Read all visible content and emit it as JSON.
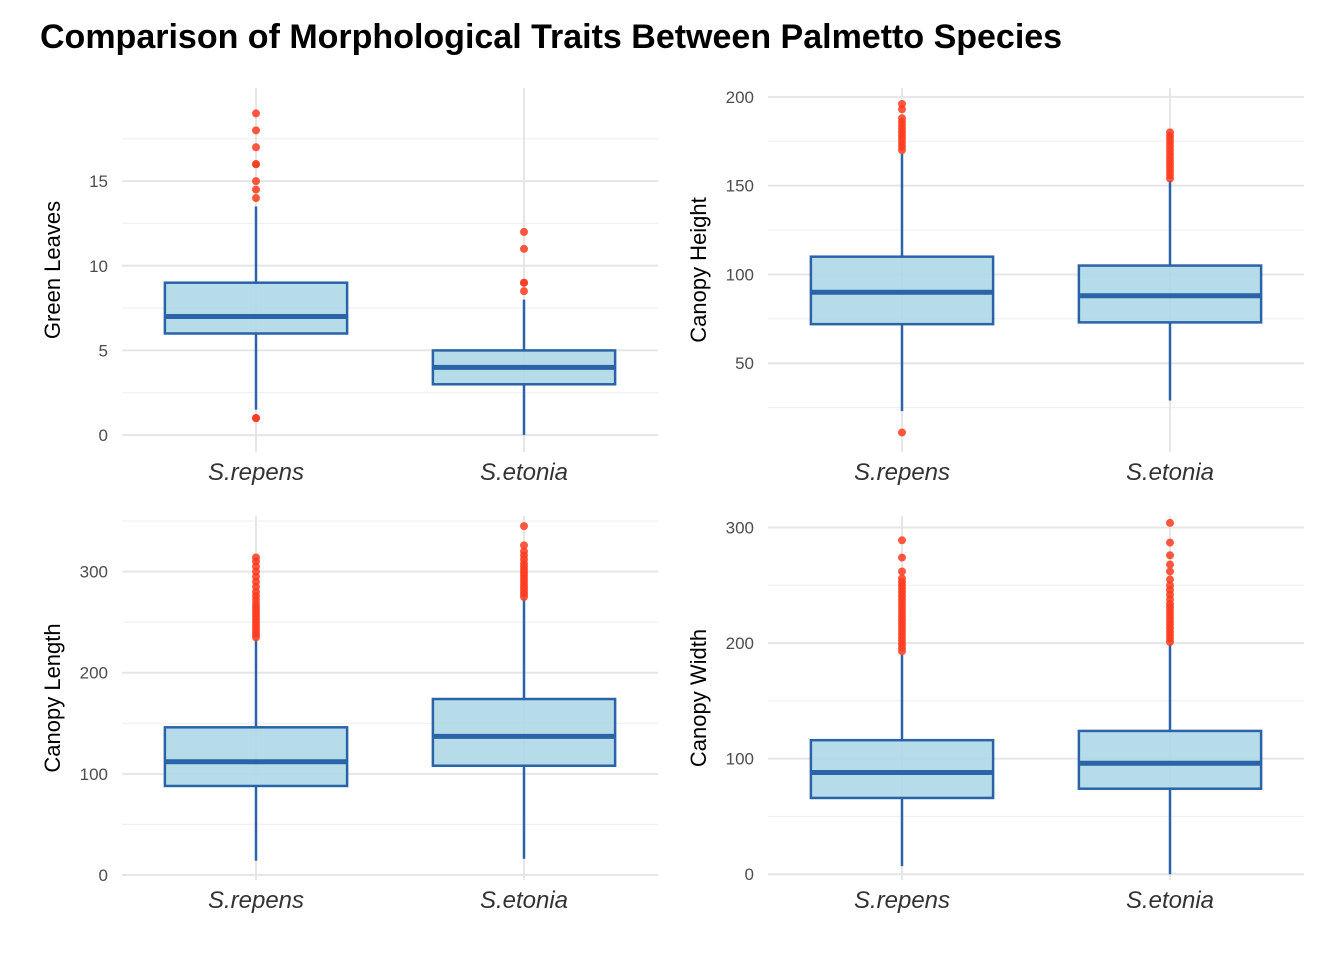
{
  "title": "Comparison of Morphological Traits Between Palmetto Species",
  "colors": {
    "box_fill": "#add8e6",
    "box_line": "#2a63a8",
    "outlier": "#ff3b20",
    "grid_major": "#e6e6e6",
    "grid_minor": "#f0f0f0"
  },
  "chart_data": [
    {
      "type": "box",
      "ylabel": "Green Leaves",
      "categories": [
        "S.repens",
        "S.etonia"
      ],
      "ylim": [
        -1,
        20.5
      ],
      "yticks": [
        0,
        5,
        10,
        15
      ],
      "boxes": [
        {
          "name": "S.repens",
          "whisker_low": 1.5,
          "q1": 6,
          "median": 7,
          "q3": 9,
          "whisker_high": 13.5,
          "outliers": [
            1,
            1,
            14,
            14.5,
            15,
            16,
            16,
            17,
            18,
            19
          ]
        },
        {
          "name": "S.etonia",
          "whisker_low": 0,
          "q1": 3,
          "median": 4,
          "q3": 5,
          "whisker_high": 8,
          "outliers": [
            8.5,
            9,
            9,
            11,
            12
          ]
        }
      ]
    },
    {
      "type": "box",
      "ylabel": "Canopy Height",
      "categories": [
        "S.repens",
        "S.etonia"
      ],
      "ylim": [
        0,
        205
      ],
      "yticks": [
        50,
        100,
        150,
        200
      ],
      "boxes": [
        {
          "name": "S.repens",
          "whisker_low": 23,
          "q1": 72,
          "median": 90,
          "q3": 110,
          "whisker_high": 168,
          "outliers": [
            11,
            170,
            172,
            174,
            176,
            178,
            180,
            182,
            184,
            186,
            188,
            193,
            196
          ]
        },
        {
          "name": "S.etonia",
          "whisker_low": 29,
          "q1": 73,
          "median": 88,
          "q3": 105,
          "whisker_high": 153,
          "outliers": [
            154,
            156,
            158,
            160,
            162,
            164,
            166,
            168,
            170,
            172,
            174,
            176,
            178,
            180
          ]
        }
      ]
    },
    {
      "type": "box",
      "ylabel": "Canopy Length",
      "categories": [
        "S.repens",
        "S.etonia"
      ],
      "ylim": [
        -5,
        355
      ],
      "yticks": [
        0,
        100,
        200,
        300
      ],
      "boxes": [
        {
          "name": "S.repens",
          "whisker_low": 14,
          "q1": 88,
          "median": 112,
          "q3": 146,
          "whisker_high": 233,
          "outliers": [
            235,
            238,
            241,
            244,
            247,
            250,
            253,
            256,
            259,
            262,
            265,
            268,
            272,
            276,
            280,
            285,
            290,
            295,
            300,
            305,
            310,
            314
          ]
        },
        {
          "name": "S.etonia",
          "whisker_low": 16,
          "q1": 108,
          "median": 137,
          "q3": 174,
          "whisker_high": 273,
          "outliers": [
            275,
            278,
            281,
            284,
            287,
            290,
            293,
            296,
            299,
            302,
            305,
            308,
            312,
            316,
            320,
            326,
            345
          ]
        }
      ]
    },
    {
      "type": "box",
      "ylabel": "Canopy Width",
      "categories": [
        "S.repens",
        "S.etonia"
      ],
      "ylim": [
        -5,
        310
      ],
      "yticks": [
        0,
        100,
        200,
        300
      ],
      "boxes": [
        {
          "name": "S.repens",
          "whisker_low": 7,
          "q1": 66,
          "median": 88,
          "q3": 116,
          "whisker_high": 190,
          "outliers": [
            193,
            196,
            199,
            202,
            205,
            208,
            211,
            214,
            217,
            220,
            223,
            226,
            229,
            232,
            235,
            238,
            241,
            244,
            247,
            250,
            253,
            256,
            262,
            274,
            289
          ]
        },
        {
          "name": "S.etonia",
          "whisker_low": 0,
          "q1": 74,
          "median": 96,
          "q3": 124,
          "whisker_high": 199,
          "outliers": [
            201,
            204,
            207,
            210,
            213,
            216,
            219,
            222,
            225,
            228,
            231,
            234,
            238,
            242,
            246,
            250,
            255,
            262,
            268,
            276,
            287,
            304
          ]
        }
      ]
    }
  ]
}
